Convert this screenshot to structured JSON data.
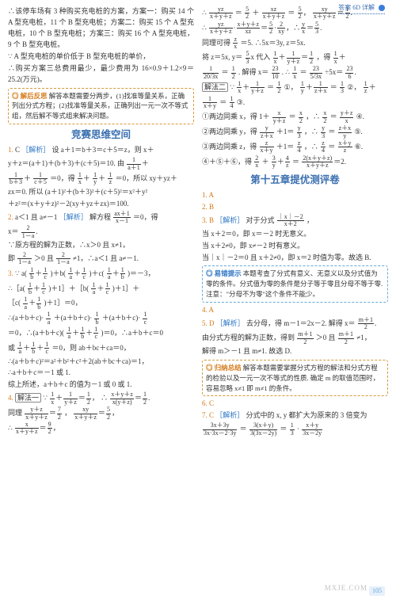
{
  "header": {
    "label": "答案 6D 详解"
  },
  "page_number": "105",
  "watermark": "MXJE.COM",
  "left": {
    "p": [
      "∴该停车场有 3 种购买充电桩的方案，方案一：购买 14 个 A 型充电桩，11 个 B 型充电桩；方案二：购买 15 个 A 型充电桩，10 个 B 型充电桩；方案三：购买 16 个 A 型充电桩，9 个 B 型充电桩。",
      "∵ A 型充电桩的单价低于 B 型充电桩的单价，",
      "∴购买方案三总费用最少，最少费用为 16×0.9＋1.2×9＝25.2(万元)。"
    ],
    "box1": {
      "title": "◎ 解后反思",
      "text": "解答本题需要分两步，(1)找准等量关系，正确列出分式方程；(2)找准等量关系，正确列出一元一次不等式组，然后解不等式组来解决问题。"
    },
    "sec1_title": "竞赛思维空间",
    "q1": {
      "no": "1.",
      "ans": "C",
      "tag": "［解析］",
      "l1": "设 a＋1＝b＋3＝c＋5＝z，则 x＋",
      "l2": "y＋z＝(a＋1)＋(b＋3)＋(c＋5)＝10. 由",
      "l3": "＝0，得",
      "l4": "＝0，所以 xy＋yz＋",
      "l5": "zx＝0. 所以 (a＋1)²＋(b＋3)²＋(c＋5)²＝x²＋y²",
      "l6": "＋z²＝(x＋y＋z)²－2(xy＋yz＋zx)＝100."
    },
    "q2": {
      "no": "2.",
      "ans": "a＜1 且 a≠－1",
      "tag": "［解析］",
      "l1": "解方程",
      "eq": "＝0，得",
      "l2": "x＝",
      "l3": "∵原方程的解为正数，∴x＞0 且 x≠1，",
      "l4": "即",
      "l5": "＞0 且",
      "l6": "≠1，∴a＜1 且 a≠－1."
    },
    "q3": {
      "no": "3.",
      "l1": "∵ a(",
      "l2": ")＋b(",
      "l3": ")＋c(",
      "l4": ")＝－3，",
      "l5": "∴［a(",
      "l6": ")＋1］＋［b(",
      "l7": ")＋1］＋",
      "l8": "［c(",
      "l9": ")＋1］＝0，",
      "l10": "∴(a＋b＋c)·",
      "l11": "＋(a＋b＋c)·",
      "l12": "＋(a＋b＋c)·",
      "l13": "＝0，∴(a＋b＋c)(",
      "l14": ")＝0，∴a＋b＋c＝0",
      "l15": "或",
      "l16": "＝0，则 ab＋bc＋ca＝0，",
      "l17": "∴(a＋b＋c)²＝a²＋b²＋c²＋2(ab＋bc＋ca)＝1，",
      "l18": "∴a＋b＋c＝－1 或 1.",
      "l19": "综上所述，a＋b＋c 的值为－1 或 0 或 1."
    },
    "q4": {
      "no": "4.",
      "m": "解法一",
      "l1": "∵",
      "l2": "∴",
      "l3": "同理",
      "l4": "，",
      "l5": "∴"
    }
  },
  "right": {
    "r1": {
      "l1": "＝",
      "l2": "＋",
      "l3": "＝5，",
      "l4": "∴",
      "l5": "＝5，",
      "l6": "同理可得",
      "l7": "＝5. ∴5x＝3y, z＝5x.",
      "l8": "将 z＝5x, y＝",
      "l9": " 代入",
      "l10": "，得",
      "l11": "＝",
      "l12": ". 解得 x＝",
      "l13": ". ∴",
      "l14": "＝",
      "l15": "÷5x＝"
    },
    "m2": "解法二",
    "r2": {
      "l1": "∵",
      "l2": "＝",
      "l3": "①，",
      "l4": "＝",
      "l5": "②，",
      "l6": "＝",
      "l7": "③.",
      "l8": "①两边同乘 x，得 1＋",
      "l9": "＝",
      "l10": "，∴",
      "l11": "＝",
      "l12": "④.",
      "l13": "②两边同乘 y，得",
      "l14": "＋1＝",
      "l15": "，∴",
      "l16": "＝",
      "l17": "⑤.",
      "l18": "③两边同乘 z，得",
      "l19": "＋1＝",
      "l20": "，∴",
      "l21": "＝",
      "l22": "⑥.",
      "l23": "④＋⑤＋⑥，得",
      "l24": "＋",
      "l25": "＝"
    },
    "sec2_title": "第十五章提优测评卷",
    "a1": "1. A",
    "a2": "2. B",
    "q3b": {
      "no": "3. B",
      "tag": "［解析］",
      "l1": "对于分式",
      "l2": "，",
      "l3": "当 x＋2＝0，即 x＝－2 时无意义。",
      "l4": "当 x＋2≠0，即 x≠－2 时有意义。",
      "l5": "当｜x｜－2＝0 且 x＋2≠0，即 x＝2 时值为零。故选 B."
    },
    "box2": {
      "title": "◎ 易错提示",
      "text": "本题考查了分式有意义、无意义以及分式值为零的条件。分式值为零的条件是分子等于零且分母不等于零. 注意：\"分母不为零\"这个条件不能少。"
    },
    "a4": "4. A",
    "q5": {
      "no": "5. D",
      "tag": "［解析］",
      "l1": "去分母，得 m－1＝2x－2. 解得 x＝",
      "l2": "由分式方程的解为正数，得到",
      "l3": "＞0 且",
      "l4": "≠1，",
      "l5": "解得 m＞－1 且 m≠1. 故选 D."
    },
    "box3": {
      "title": "◎ 归纳总结",
      "text": "解答本题需要掌握分式方程的解法和分式方程的检验以及一元一次不等式的性质. 确定 m 的取值范围时，容易忽略 x≠1 即 m≠1 的条件。"
    },
    "a6": "6. C",
    "q7": {
      "no": "7. C",
      "tag": "［解析］",
      "l1": "分式中的 x, y 都扩大为原来的 3 倍变为",
      "l2": "＝",
      "l3": "＝",
      "l4": "·"
    }
  }
}
